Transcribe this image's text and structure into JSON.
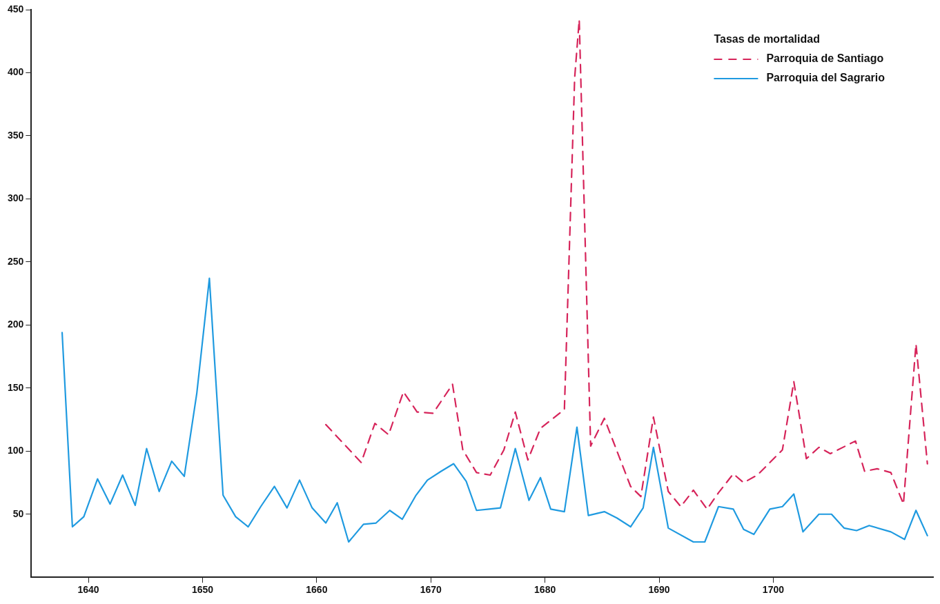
{
  "chart_data": {
    "type": "line",
    "legend_title": "Tasas de mortalidad",
    "legend": "top right",
    "marker": "none",
    "xlim": [
      1635,
      1714
    ],
    "ylim": [
      0,
      450
    ],
    "xticks": [
      1640,
      1650,
      1660,
      1670,
      1680,
      1690,
      1700
    ],
    "yticks": [
      50,
      100,
      150,
      200,
      250,
      300,
      350,
      400,
      450
    ],
    "series": [
      {
        "name": "Parroquia de Santiago",
        "color": "#d6245a",
        "line_style": "dashed",
        "x": [
          1660.8,
          1663.9,
          1665.1,
          1666.3,
          1667.6,
          1668.8,
          1670.2,
          1671.9,
          1672.8,
          1674.0,
          1675.2,
          1676.4,
          1677.4,
          1678.5,
          1679.6,
          1681.7,
          1682.6,
          1683.0,
          1684.0,
          1685.2,
          1687.5,
          1688.4,
          1689.5,
          1690.8,
          1691.9,
          1693.0,
          1694.2,
          1695.2,
          1696.5,
          1697.4,
          1698.6,
          1699.6,
          1700.8,
          1701.8,
          1702.9,
          1704.0,
          1705.0,
          1707.2,
          1708.0,
          1709.1,
          1710.3,
          1711.4,
          1712.5,
          1713.5
        ],
        "values": [
          121,
          91,
          122,
          113,
          147,
          131,
          130,
          153,
          101,
          83,
          81,
          101,
          131,
          93,
          118,
          133,
          396,
          442,
          104,
          126,
          72,
          64,
          127,
          68,
          56,
          69,
          54,
          67,
          82,
          75,
          81,
          90,
          101,
          155,
          94,
          103,
          98,
          108,
          84,
          86,
          83,
          58,
          185,
          90
        ]
      },
      {
        "name": "Parroquia del Sagrario",
        "color": "#1f9ae0",
        "line_style": "solid",
        "x": [
          1637.7,
          1638.6,
          1639.6,
          1640.8,
          1641.9,
          1643.0,
          1644.1,
          1645.1,
          1646.2,
          1647.3,
          1648.4,
          1649.5,
          1650.6,
          1651.8,
          1652.9,
          1654.0,
          1655.1,
          1656.3,
          1657.4,
          1658.5,
          1659.6,
          1660.8,
          1661.8,
          1662.8,
          1664.1,
          1665.2,
          1666.4,
          1667.5,
          1668.7,
          1669.7,
          1670.9,
          1672.0,
          1673.1,
          1674.0,
          1675.1,
          1676.1,
          1677.4,
          1678.6,
          1679.6,
          1680.5,
          1681.7,
          1682.8,
          1683.8,
          1685.2,
          1686.3,
          1687.5,
          1688.6,
          1689.5,
          1690.8,
          1693.0,
          1694.0,
          1695.2,
          1696.5,
          1697.4,
          1698.3,
          1699.7,
          1700.8,
          1701.8,
          1702.6,
          1704.0,
          1705.1,
          1706.2,
          1707.3,
          1708.4,
          1710.3,
          1711.5,
          1712.5,
          1713.5
        ],
        "values": [
          194,
          40,
          48,
          78,
          58,
          81,
          57,
          102,
          68,
          92,
          80,
          146,
          237,
          65,
          48,
          40,
          56,
          72,
          55,
          77,
          55,
          43,
          59,
          28,
          42,
          43,
          53,
          46,
          65,
          77,
          84,
          90,
          76,
          53,
          54,
          55,
          102,
          61,
          79,
          54,
          52,
          119,
          49,
          52,
          47,
          40,
          55,
          103,
          39,
          28,
          28,
          56,
          54,
          38,
          34,
          54,
          56,
          66,
          36,
          50,
          50,
          39,
          37,
          41,
          36,
          30,
          53,
          33
        ]
      }
    ]
  }
}
